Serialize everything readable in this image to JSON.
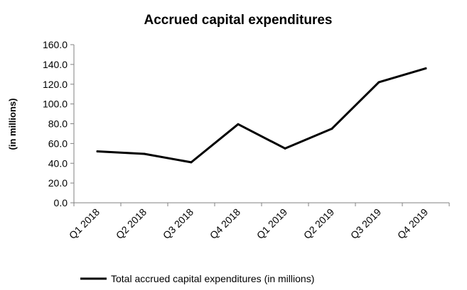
{
  "chart_data": {
    "type": "line",
    "title": "Accrued capital expenditures",
    "xlabel": "",
    "ylabel": "(in millions)",
    "categories": [
      "Q1 2018",
      "Q2 2018",
      "Q3 2018",
      "Q4 2018",
      "Q1 2019",
      "Q2 2019",
      "Q3 2019",
      "Q4 2019"
    ],
    "series": [
      {
        "name": "Total accrued capital expenditures (in millions)",
        "values": [
          52.0,
          49.5,
          41.0,
          79.5,
          55.0,
          75.0,
          122.0,
          136.0
        ],
        "color": "#000000"
      }
    ],
    "ylim": [
      0,
      160
    ],
    "yticks": [
      "0.0",
      "20.0",
      "40.0",
      "60.0",
      "80.0",
      "100.0",
      "120.0",
      "140.0",
      "160.0"
    ],
    "grid": false,
    "legend_position": "bottom"
  }
}
